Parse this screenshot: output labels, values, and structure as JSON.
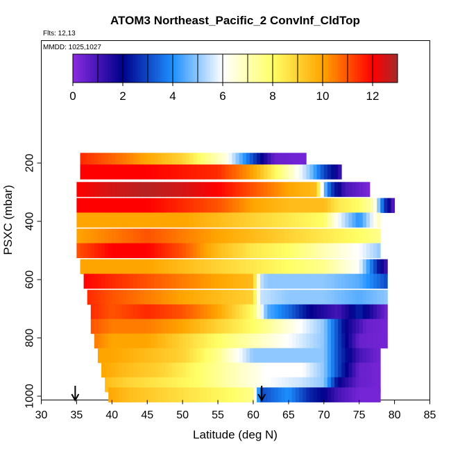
{
  "chart_data": {
    "type": "heatmap",
    "title": "ATOM3 Northeast_Pacific_2 ConvInf_CldTop",
    "annotations": [
      "Flts: 12,13",
      "MMDD: 1025,1027"
    ],
    "xlabel": "Latitude (deg N)",
    "ylabel": "PSXC (mbar)",
    "xlim": [
      30,
      85
    ],
    "ylim": [
      1000,
      80
    ],
    "x_ticks": [
      30,
      35,
      40,
      45,
      50,
      55,
      60,
      65,
      70,
      75,
      80,
      85
    ],
    "y_ticks": [
      200,
      400,
      600,
      800,
      1000
    ],
    "colorbar": {
      "range": [
        0,
        13
      ],
      "ticks": [
        0,
        2,
        4,
        6,
        8,
        10,
        12
      ],
      "stops": [
        "#8a2be2",
        "#00008b",
        "#1e90ff",
        "#ffffff",
        "#ffff66",
        "#ffa500",
        "#ff0000",
        "#a52a2a"
      ],
      "stop_values": [
        0,
        2,
        4,
        6,
        8,
        10,
        12,
        13
      ]
    },
    "arrows_at_lat": [
      34.8,
      61.2
    ],
    "rows": [
      {
        "p": 190,
        "lat_min": 35.5,
        "lat_max": 67.5,
        "x": [
          35.5,
          42,
          50,
          56,
          60,
          63,
          67.5
        ],
        "v": [
          11.5,
          10.5,
          9.0,
          6.5,
          3.0,
          0.5,
          0.3
        ]
      },
      {
        "p": 230,
        "lat_min": 35.5,
        "lat_max": 72.5,
        "x": [
          35.5,
          45,
          55,
          60,
          65,
          68,
          70,
          71.5,
          72.5
        ],
        "v": [
          12.0,
          12.0,
          11.5,
          10.0,
          7.0,
          5.0,
          3.0,
          2.0,
          1.0
        ]
      },
      {
        "p": 290,
        "lat_min": 35,
        "lat_max": 76.5,
        "x": [
          35,
          40,
          45,
          50,
          55,
          60,
          65,
          69,
          70,
          71,
          73,
          76.5
        ],
        "v": [
          12.0,
          12.5,
          12.8,
          12.5,
          12.0,
          11.0,
          10.0,
          9.5,
          5.0,
          3.0,
          1.0,
          0.2
        ]
      },
      {
        "p": 345,
        "lat_min": 35,
        "lat_max": 80,
        "x": [
          35,
          40,
          45,
          50,
          55,
          60,
          65,
          70,
          72,
          75,
          77,
          78.5,
          80
        ],
        "v": [
          12.0,
          12.0,
          12.0,
          11.5,
          11.0,
          10.0,
          9.5,
          9.5,
          8.5,
          8.0,
          7.0,
          3.0,
          0.5
        ]
      },
      {
        "p": 395,
        "lat_min": 35,
        "lat_max": 78,
        "x": [
          35,
          42,
          50,
          55,
          60,
          65,
          70,
          72,
          75,
          78
        ],
        "v": [
          10.0,
          10.0,
          10.0,
          9.5,
          9.0,
          8.5,
          8.0,
          6.0,
          4.0,
          7.0
        ]
      },
      {
        "p": 450,
        "lat_min": 35,
        "lat_max": 78,
        "x": [
          35,
          40,
          45,
          50,
          55,
          60,
          65,
          70,
          75,
          78
        ],
        "v": [
          10.0,
          10.5,
          11.0,
          10.5,
          10.0,
          9.5,
          9.0,
          8.5,
          8.0,
          7.5
        ]
      },
      {
        "p": 500,
        "lat_min": 35,
        "lat_max": 78,
        "x": [
          35,
          40,
          45,
          50,
          55,
          60,
          65,
          70,
          75,
          78
        ],
        "v": [
          11.0,
          12.0,
          12.0,
          11.0,
          9.5,
          8.5,
          8.0,
          7.0,
          6.0,
          5.0
        ]
      },
      {
        "p": 555,
        "lat_min": 35.5,
        "lat_max": 79,
        "x": [
          35.5,
          40,
          45,
          50,
          55,
          60,
          65,
          70,
          75,
          78,
          79
        ],
        "v": [
          10.0,
          10.0,
          10.0,
          9.5,
          9.0,
          8.5,
          8.0,
          7.5,
          6.0,
          2.0,
          1.0
        ]
      },
      {
        "p": 605,
        "lat_min": 36,
        "lat_max": 79,
        "x": [
          36,
          40,
          45,
          50,
          55,
          60,
          61,
          62,
          65,
          70,
          75,
          79
        ],
        "v": [
          12.0,
          11.5,
          11.0,
          10.5,
          10.0,
          9.5,
          5.5,
          5.0,
          5.0,
          5.0,
          4.5,
          3.0
        ]
      },
      {
        "p": 660,
        "lat_min": 36.5,
        "lat_max": 79,
        "x": [
          36.5,
          40,
          45,
          50,
          55,
          60,
          61,
          65,
          70,
          75,
          79
        ],
        "v": [
          11.5,
          11.0,
          10.5,
          10.0,
          9.5,
          9.0,
          5.5,
          5.0,
          5.0,
          4.5,
          5.0
        ]
      },
      {
        "p": 710,
        "lat_min": 37,
        "lat_max": 79,
        "x": [
          37,
          40,
          45,
          50,
          55,
          60,
          62,
          65,
          68,
          70,
          72,
          75,
          79
        ],
        "v": [
          11.5,
          11.0,
          11.5,
          11.0,
          10.0,
          8.0,
          4.5,
          3.5,
          2.0,
          1.5,
          1.0,
          2.5,
          0.3
        ]
      },
      {
        "p": 760,
        "lat_min": 37,
        "lat_max": 79,
        "x": [
          37,
          40,
          45,
          50,
          55,
          60,
          65,
          70,
          73,
          76,
          79
        ],
        "v": [
          11.0,
          10.5,
          10.5,
          10.0,
          9.0,
          8.0,
          6.5,
          5.0,
          2.0,
          0.5,
          0.3
        ]
      },
      {
        "p": 810,
        "lat_min": 37.5,
        "lat_max": 79,
        "x": [
          37.5,
          40,
          45,
          50,
          55,
          60,
          65,
          70,
          72,
          75,
          79
        ],
        "v": [
          10.5,
          10.0,
          10.0,
          9.0,
          8.0,
          7.0,
          6.0,
          5.0,
          3.0,
          0.5,
          0.3
        ]
      },
      {
        "p": 860,
        "lat_min": 38,
        "lat_max": 78,
        "x": [
          38,
          40,
          45,
          50,
          55,
          60,
          65,
          70,
          72,
          75,
          78
        ],
        "v": [
          10.0,
          10.0,
          9.5,
          9.0,
          7.5,
          5.0,
          5.0,
          5.0,
          3.0,
          1.0,
          0.3
        ]
      },
      {
        "p": 910,
        "lat_min": 38.5,
        "lat_max": 78,
        "x": [
          38.5,
          42,
          47,
          52,
          57,
          62,
          67,
          70,
          72,
          75,
          78
        ],
        "v": [
          10.0,
          9.5,
          9.0,
          8.0,
          7.0,
          6.0,
          6.0,
          5.0,
          3.0,
          0.5,
          0.3
        ]
      },
      {
        "p": 960,
        "lat_min": 39,
        "lat_max": 78,
        "x": [
          39,
          42,
          47,
          52,
          57,
          62,
          67,
          70,
          72,
          75,
          78
        ],
        "v": [
          9.5,
          9.0,
          8.5,
          8.0,
          7.0,
          6.0,
          5.5,
          5.0,
          2.0,
          0.5,
          0.3
        ]
      },
      {
        "p": 995,
        "lat_min": 39.5,
        "lat_max": 78,
        "x": [
          39.5,
          42,
          47,
          52,
          57,
          60,
          61,
          63,
          65,
          68,
          70,
          72,
          75,
          78
        ],
        "v": [
          10.0,
          9.5,
          9.0,
          8.5,
          8.0,
          7.5,
          3.0,
          3.5,
          4.0,
          2.5,
          2.0,
          1.0,
          0.3,
          0.3
        ]
      }
    ]
  }
}
